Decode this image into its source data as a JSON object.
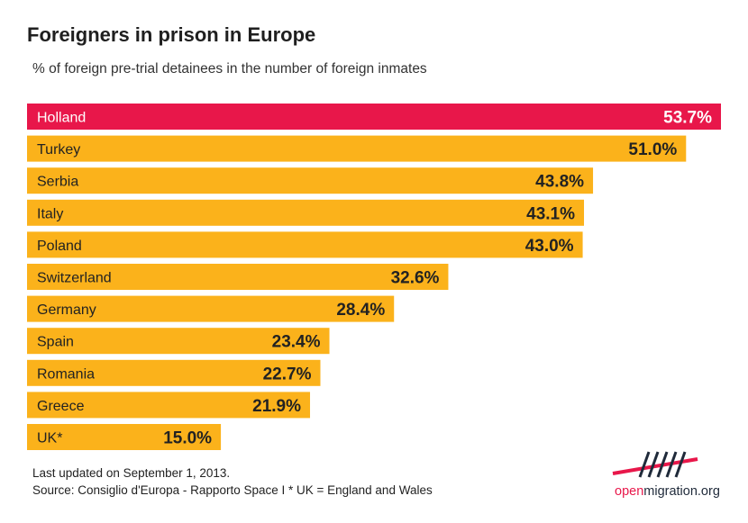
{
  "title": "Foreigners in prison in Europe",
  "subtitle": "% of foreign pre-trial detainees in the number of foreign inmates",
  "footer": {
    "line1": "Last updated on September 1, 2013.",
    "line2": "Source: Consiglio d'Europa - Rapporto Space I  * UK = England and Wales"
  },
  "logo": {
    "open": "open",
    "rest": "migration.org"
  },
  "colors": {
    "highlight": "#e8174a",
    "bar": "#fbb21b",
    "highlight_text": "#ffffff",
    "bar_text": "#222222"
  },
  "chart_data": {
    "type": "bar",
    "orientation": "horizontal",
    "categories": [
      "Holland",
      "Turkey",
      "Serbia",
      "Italy",
      "Poland",
      "Switzerland",
      "Germany",
      "Spain",
      "Romania",
      "Greece",
      "UK*"
    ],
    "values": [
      53.7,
      51.0,
      43.8,
      43.1,
      43.0,
      32.6,
      28.4,
      23.4,
      22.7,
      21.9,
      15.0
    ],
    "value_labels": [
      "53.7%",
      "51.0%",
      "43.8%",
      "43.1%",
      "43.0%",
      "32.6%",
      "28.4%",
      "23.4%",
      "22.7%",
      "21.9%",
      "15.0%"
    ],
    "highlighted_category": "Holland",
    "xlim": [
      0,
      53.7
    ],
    "grid": false,
    "legend": "none"
  }
}
